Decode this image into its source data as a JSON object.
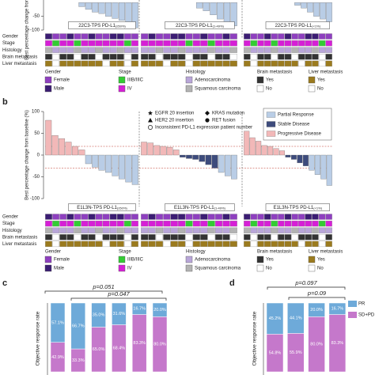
{
  "chart_data": [
    {
      "type": "waterfall",
      "ylabel": "Best percentage change from baseline (%)",
      "ylim": [
        -100,
        15
      ],
      "yticks": [
        -50,
        -100
      ],
      "series": [
        {
          "color": "#b9cde6"
        }
      ],
      "groups": [
        {
          "label": "22C3-TPS PD-L1",
          "subscript": "(≥50%)",
          "values": [
            [
              -15,
              -25,
              -35,
              -40,
              -50,
              -58,
              -65,
              -80,
              -92
            ]
          ]
        },
        {
          "label": "22C3-TPS PD-L1",
          "subscript": "(1-49%)",
          "values": [
            [
              -20,
              -30,
              -45,
              -60,
              -75,
              -85
            ]
          ]
        },
        {
          "label": "22C3-TPS PD-L1",
          "subscript": "(<1%)",
          "values": [
            [
              -10,
              -20,
              -35,
              -50,
              -60,
              -70
            ]
          ]
        }
      ],
      "tracks": [
        "Gender",
        "Stage",
        "Histology",
        "Brain metastasis",
        "Liver metastasis"
      ],
      "legend": [
        {
          "title": "Gender",
          "items": [
            {
              "label": "Female",
              "color": "#8e3fbf"
            },
            {
              "label": "Male",
              "color": "#3b1d73"
            }
          ]
        },
        {
          "title": "Stage",
          "items": [
            {
              "label": "IIIB/IIIC",
              "color": "#33cc33"
            },
            {
              "label": "IV",
              "color": "#d61fd6"
            }
          ]
        },
        {
          "title": "Histology",
          "items": [
            {
              "label": "Adenocarcinoma",
              "color": "#b9a6d9"
            },
            {
              "label": "Squamous carcinoma",
              "color": "#b3b3b3"
            }
          ]
        },
        {
          "title": "Brain metastasis",
          "items": [
            {
              "label": "Yes",
              "color": "#333333"
            },
            {
              "label": "No",
              "color": "#ffffff"
            }
          ]
        },
        {
          "title": "Liver metastasis",
          "items": [
            {
              "label": "Yes",
              "color": "#9b7b1e"
            },
            {
              "label": "No",
              "color": "#ffffff"
            }
          ]
        }
      ]
    },
    {
      "type": "waterfall",
      "panel": "b",
      "ylabel": "Best percentage change from baseline (%)",
      "ylim": [
        -100,
        100
      ],
      "yticks": [
        -100,
        -50,
        0,
        50,
        100
      ],
      "reference_lines": [
        20,
        -30
      ],
      "series": [
        {
          "name": "Partial Response",
          "color": "#b9cde6"
        },
        {
          "name": "Stable Disease",
          "color": "#3d4b7c"
        },
        {
          "name": "Progressive Disease",
          "color": "#f2b8b8"
        }
      ],
      "markers": [
        {
          "label": "EGFR 20 insertion",
          "symbol": "star"
        },
        {
          "label": "HER2 20 insertion",
          "symbol": "triangle"
        },
        {
          "label": "KRAS mutation",
          "symbol": "diamond"
        },
        {
          "label": "RET fusion",
          "symbol": "circle"
        },
        {
          "label": "Inconsistent PD-L1 expression patient number",
          "symbol": "circle-open"
        }
      ],
      "groups": [
        {
          "label": "E1L3N-TPS PD-L1",
          "subscript": "(≥50%)",
          "values": [
            [
              -20,
              -28,
              -35,
              -40,
              -48,
              -55,
              -62,
              -68
            ],
            [],
            [
              80,
              45,
              38,
              30,
              20,
              12
            ]
          ]
        },
        {
          "label": "E1L3N-TPS PD-L1",
          "subscript": "(1-49%)",
          "values": [
            [
              -40,
              -48,
              -55
            ],
            [
              -5,
              -8,
              -10,
              -15,
              -22,
              -30
            ],
            [
              30,
              28,
              22,
              20,
              18,
              12
            ]
          ]
        },
        {
          "label": "E1L3N-TPS PD-L1",
          "subscript": "(<1%)",
          "values": [
            [
              -35,
              -45,
              -55,
              -70
            ],
            [
              -5,
              -10,
              -18,
              -25
            ],
            [
              55,
              40,
              32,
              22,
              20,
              15,
              10
            ]
          ]
        }
      ],
      "tracks": [
        "Gender",
        "Stage",
        "Histology",
        "Brain metastasis",
        "Liver metastasis"
      ],
      "legend": [
        {
          "title": "Gender",
          "items": [
            {
              "label": "Female",
              "color": "#8e3fbf"
            },
            {
              "label": "Male",
              "color": "#3b1d73"
            }
          ]
        },
        {
          "title": "Stage",
          "items": [
            {
              "label": "IIIB/IIIC",
              "color": "#33cc33"
            },
            {
              "label": "IV",
              "color": "#d61fd6"
            }
          ]
        },
        {
          "title": "Histology",
          "items": [
            {
              "label": "Adenocarcinoma",
              "color": "#b9a6d9"
            },
            {
              "label": "Squamous carcinoma",
              "color": "#b3b3b3"
            }
          ]
        },
        {
          "title": "Brain metastasis",
          "items": [
            {
              "label": "Yes",
              "color": "#333333"
            },
            {
              "label": "No",
              "color": "#ffffff"
            }
          ]
        },
        {
          "title": "Liver metastasis",
          "items": [
            {
              "label": "Yes",
              "color": "#9b7b1e"
            },
            {
              "label": "No",
              "color": "#ffffff"
            }
          ]
        }
      ]
    },
    {
      "type": "stacked_bar",
      "panel": "c",
      "ylabel": "Objective response rate",
      "ylim": [
        0,
        100
      ],
      "categories": [
        null,
        null,
        null,
        null,
        null,
        null
      ],
      "series": [
        {
          "name": "PR",
          "color": "#6eaad9",
          "values": [
            57.1,
            66.7,
            35.0,
            31.6,
            16.7,
            20.0
          ],
          "value_labels": [
            "57.1%",
            "66.7%",
            "35.0%",
            "31.6%",
            "16.7%",
            "20.0%"
          ]
        },
        {
          "name": "SD+PD",
          "color": "#c578cb",
          "values": [
            42.9,
            33.3,
            65.0,
            68.4,
            83.3,
            80.0
          ],
          "value_labels": [
            "42.9%",
            "33.3%",
            "65.0%",
            "68.4%",
            "83.3%",
            "80.0%"
          ]
        }
      ],
      "annotations": [
        "p=0.051",
        "p=0.047"
      ]
    },
    {
      "type": "stacked_bar",
      "panel": "d",
      "ylabel": "Objective response rate",
      "ylim": [
        0,
        100
      ],
      "legend": true,
      "categories": [
        null,
        null,
        null,
        null
      ],
      "series": [
        {
          "name": "PR",
          "color": "#6eaad9",
          "values": [
            45.2,
            44.1,
            20.0,
            16.7
          ],
          "value_labels": [
            "45.2%",
            "44.1%",
            "20.0%",
            "16.7%"
          ]
        },
        {
          "name": "SD+PD",
          "color": "#c578cb",
          "values": [
            54.8,
            55.9,
            80.0,
            83.3
          ],
          "value_labels": [
            "54.8%",
            "55.9%",
            "80.0%",
            "83.3%"
          ]
        }
      ],
      "annotations": [
        "p=0.097",
        "p=0.09"
      ]
    }
  ]
}
